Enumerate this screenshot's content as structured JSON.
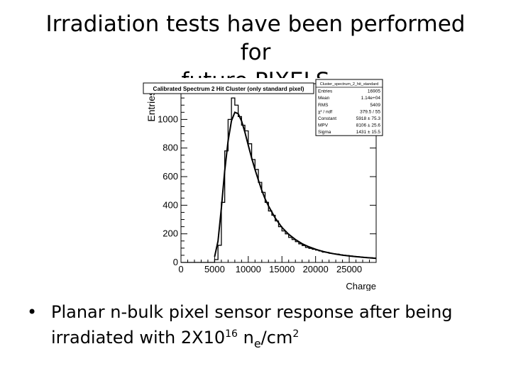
{
  "slide": {
    "title_line1": "Irradiation tests have been performed for",
    "title_line2": "future PIXELS",
    "bullet_char": "•",
    "bullet_text_prefix": "Planar n-bulk pixel sensor response after being irradiated  with 2X10",
    "bullet_exponent": "16",
    "bullet_unit_n": " n",
    "bullet_unit_sub": "e",
    "bullet_unit_rest": "/cm",
    "bullet_unit_power": "2"
  },
  "chart_data": {
    "type": "line",
    "title": "Calibrated Spectrum 2 Hit Cluster (only standard pixel)",
    "corner_label": "Cluster_spectrum_2_hit_standard",
    "xlabel": "Charge",
    "ylabel": "Entries",
    "xlim": [
      0,
      29000
    ],
    "ylim": [
      0,
      1250
    ],
    "x_ticks": [
      0,
      5000,
      10000,
      15000,
      20000,
      25000
    ],
    "y_ticks": [
      0,
      200,
      400,
      600,
      800,
      1000,
      1200
    ],
    "stats": [
      {
        "label": "Entries",
        "value": "16905"
      },
      {
        "label": "Mean",
        "value": "1.14e+04"
      },
      {
        "label": "RMS",
        "value": "5409"
      },
      {
        "label": "χ² / ndf",
        "value": "379.5 / 55"
      },
      {
        "label": "Constant",
        "value": "5918 ± 75.3"
      },
      {
        "label": "MPV",
        "value": "8106 ± 25.6"
      },
      {
        "label": "Sigma",
        "value": "1431 ± 15.5"
      }
    ],
    "series": [
      {
        "kind": "histogram",
        "bin_width": 500,
        "x": [
          0,
          500,
          1000,
          1500,
          2000,
          2500,
          3000,
          3500,
          4000,
          4500,
          5000,
          5500,
          6000,
          6500,
          7000,
          7500,
          8000,
          8500,
          9000,
          9500,
          10000,
          10500,
          11000,
          11500,
          12000,
          12500,
          13000,
          13500,
          14000,
          14500,
          15000,
          15500,
          16000,
          16500,
          17000,
          17500,
          18000,
          18500,
          19000,
          19500,
          20000,
          20500,
          21000,
          21500,
          22000,
          22500,
          23000,
          23500,
          24000,
          24500,
          25000,
          25500,
          26000,
          26500,
          27000,
          27500,
          28000,
          28500
        ],
        "values": [
          0,
          0,
          0,
          0,
          0,
          0,
          0,
          0,
          0,
          0,
          20,
          120,
          420,
          780,
          1000,
          1150,
          1100,
          1020,
          960,
          920,
          830,
          720,
          650,
          560,
          490,
          420,
          360,
          330,
          290,
          250,
          220,
          200,
          175,
          160,
          145,
          130,
          118,
          105,
          98,
          92,
          86,
          80,
          72,
          70,
          64,
          60,
          58,
          54,
          50,
          48,
          45,
          42,
          40,
          38,
          36,
          34,
          33,
          30
        ]
      },
      {
        "kind": "fit",
        "x": [
          5000,
          5500,
          6000,
          6500,
          7000,
          7500,
          8000,
          8500,
          9000,
          9500,
          10000,
          10500,
          11000,
          11500,
          12000,
          12500,
          13000,
          14000,
          15000,
          16000,
          17000,
          18000,
          19000,
          20000,
          21000,
          22000,
          23000,
          24000,
          25000,
          26000,
          27000,
          28000,
          29000
        ],
        "values": [
          40,
          150,
          380,
          640,
          850,
          990,
          1050,
          1040,
          990,
          910,
          820,
          730,
          650,
          575,
          505,
          445,
          395,
          310,
          245,
          197,
          160,
          131,
          109,
          92,
          78,
          67,
          58,
          51,
          45,
          40,
          36,
          32,
          29
        ]
      }
    ]
  }
}
